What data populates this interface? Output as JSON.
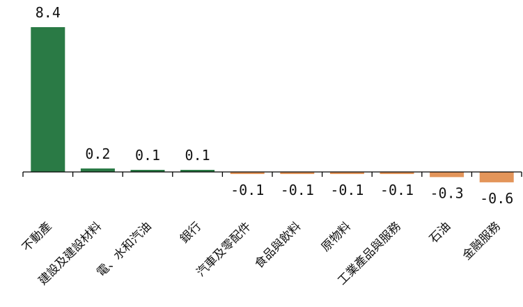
{
  "chart_data": {
    "type": "bar",
    "title": "",
    "xlabel": "",
    "ylabel": "",
    "categories": [
      "不動產",
      "建設及建設材料",
      "電、水和汽油",
      "銀行",
      "汽車及零配件",
      "食品與飲料",
      "原物料",
      "工業產品與服務",
      "石油",
      "金融服務"
    ],
    "values": [
      8.4,
      0.2,
      0.1,
      0.1,
      -0.1,
      -0.1,
      -0.1,
      -0.1,
      -0.3,
      -0.6
    ],
    "value_labels": [
      "8.4",
      "0.2",
      "0.1",
      "0.1",
      "-0.1",
      "-0.1",
      "-0.1",
      "-0.1",
      "-0.3",
      "-0.6"
    ],
    "ylim": [
      -0.6,
      8.4
    ],
    "grid": false,
    "legend": "none",
    "colors": {
      "positive": "#2a7a45",
      "negative": "#e3955a",
      "axis": "#000000"
    }
  }
}
